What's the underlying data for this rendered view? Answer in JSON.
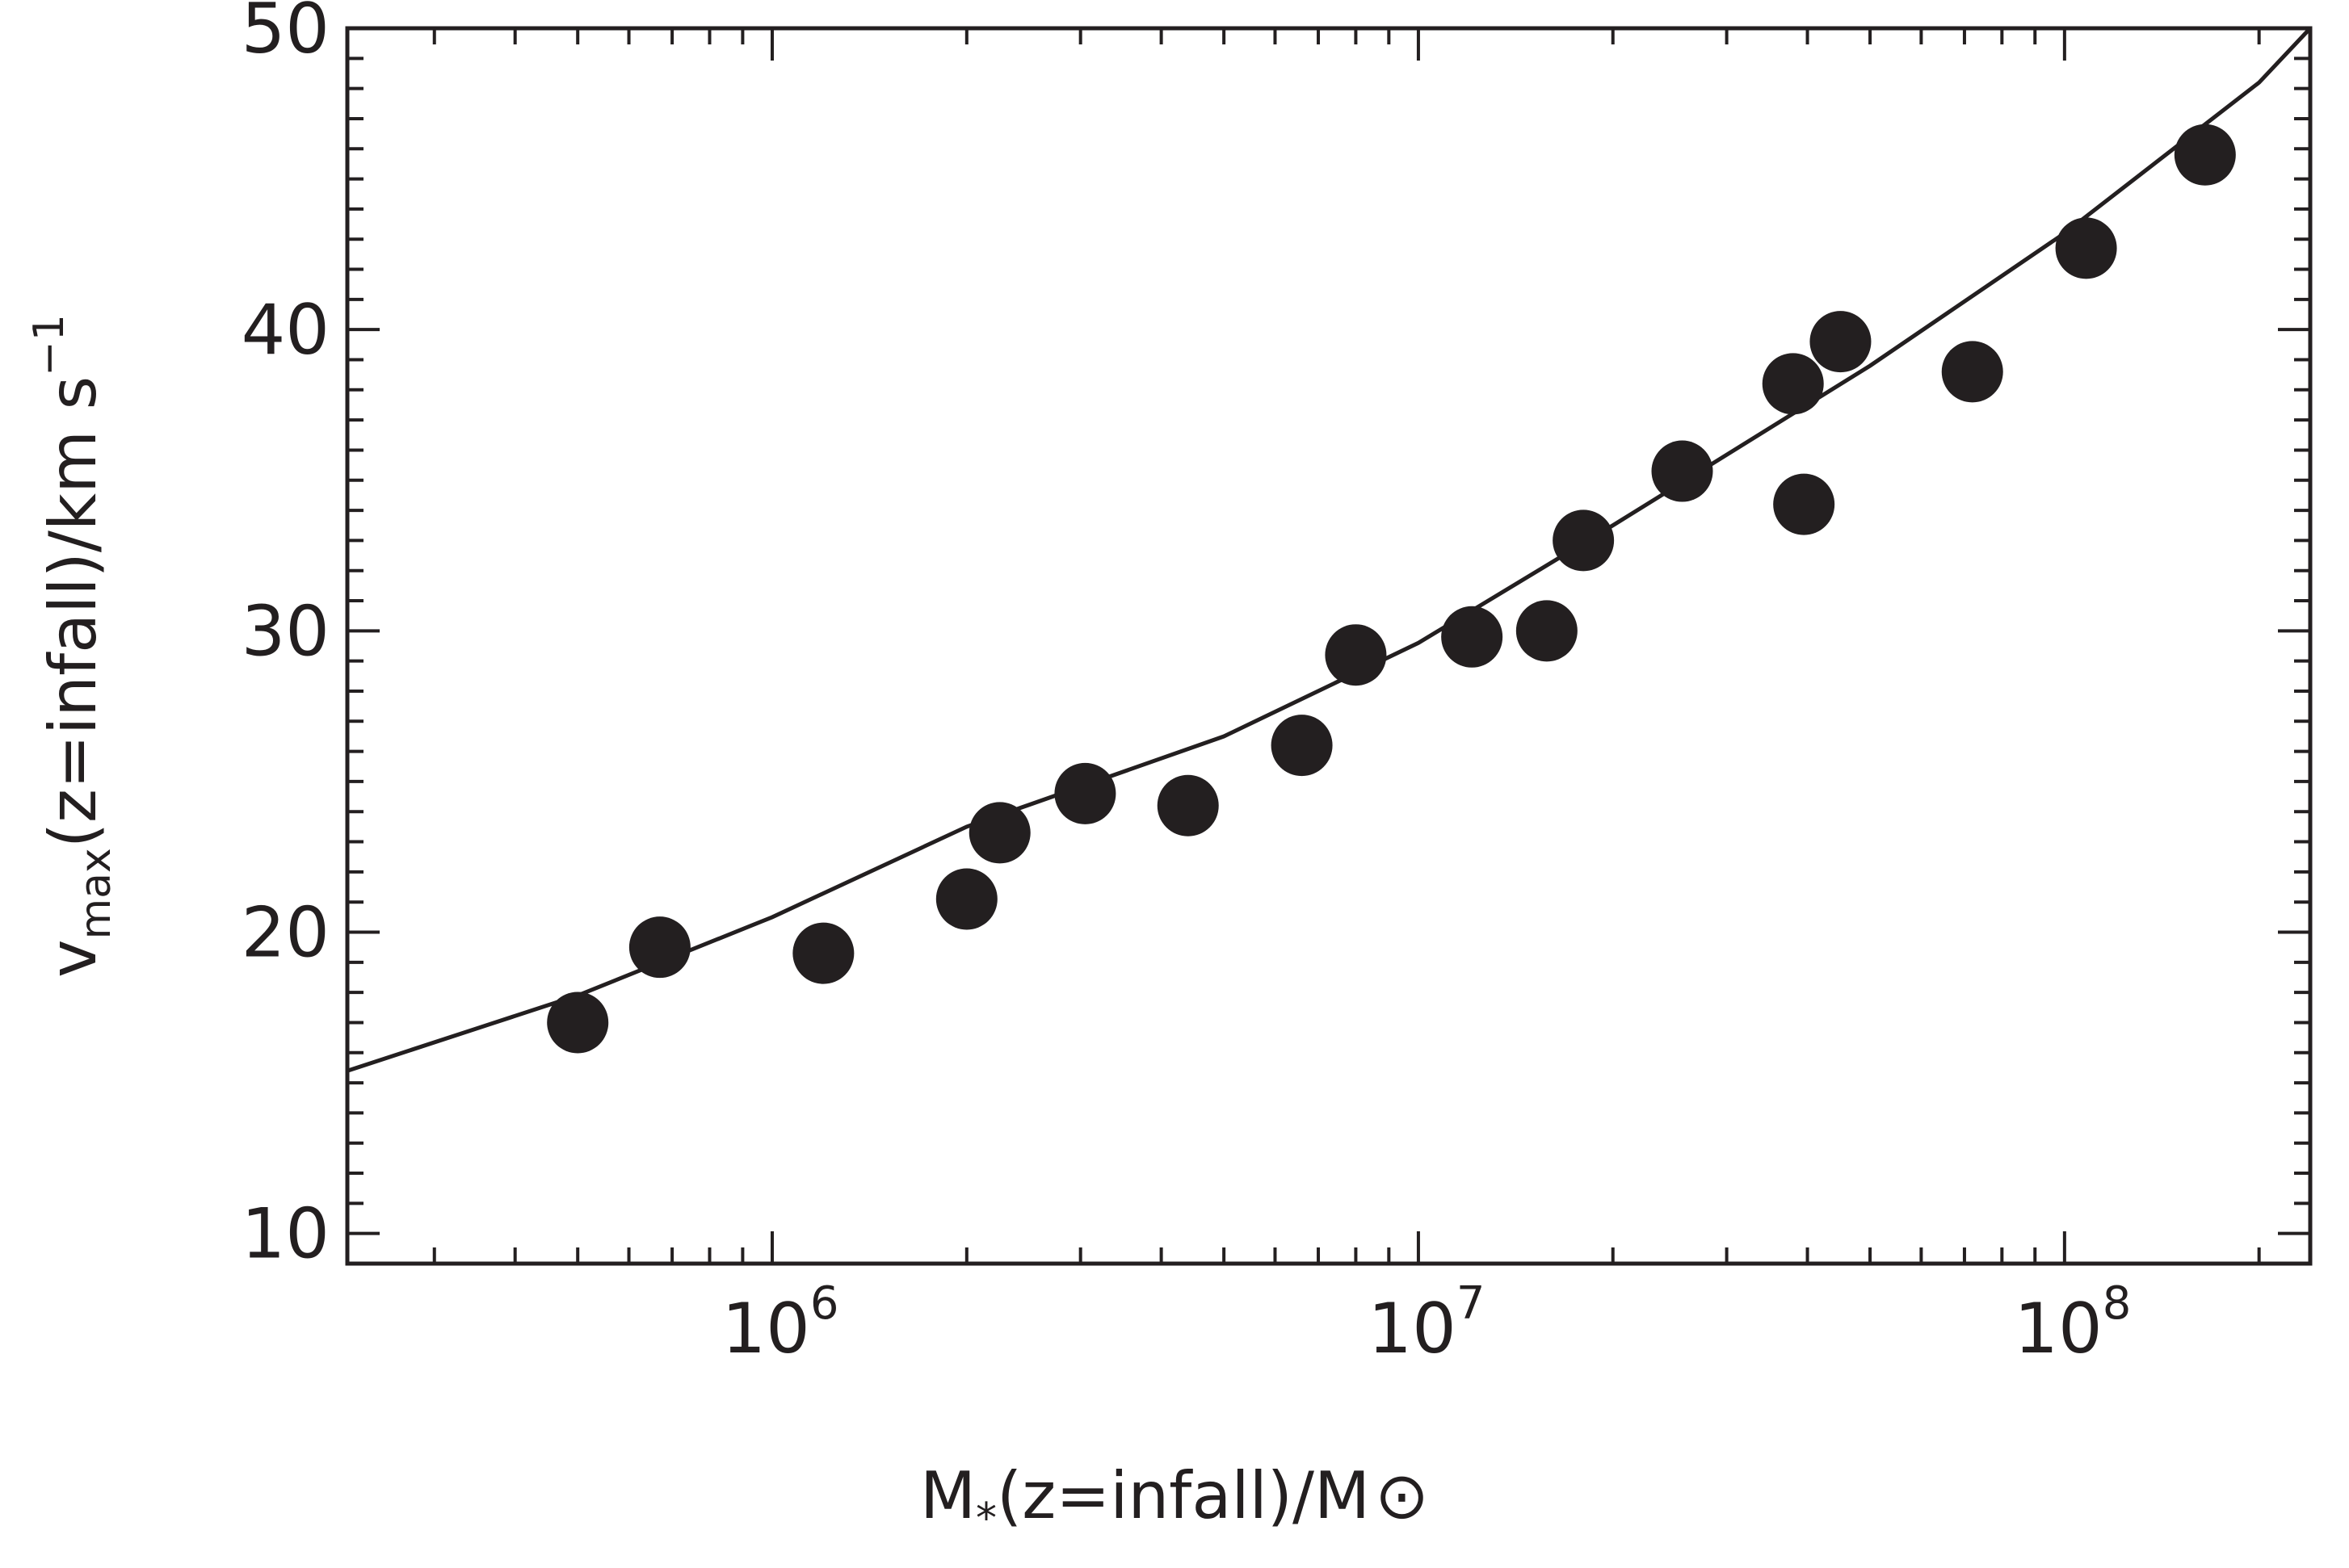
{
  "chart_data": {
    "type": "scatter",
    "x_scale": "log",
    "y_scale": "linear",
    "xlim": [
      220000,
      240000000
    ],
    "ylim": [
      9,
      50
    ],
    "colors": {
      "ink": "#231f20"
    },
    "y_ticks": [
      {
        "value": 10,
        "label": "10"
      },
      {
        "value": 20,
        "label": "20"
      },
      {
        "value": 30,
        "label": "30"
      },
      {
        "value": 40,
        "label": "40"
      },
      {
        "value": 50,
        "label": "50"
      }
    ],
    "x_ticks": [
      {
        "value": 1000000,
        "base": "10",
        "exp": "6"
      },
      {
        "value": 10000000,
        "base": "10",
        "exp": "7"
      },
      {
        "value": 100000000,
        "base": "10",
        "exp": "8"
      }
    ],
    "xlabel": {
      "main": "M",
      "sub": "*",
      "rest": "(z=infall)/M",
      "symbol": "⊙"
    },
    "ylabel": {
      "main": "v",
      "sub": "max",
      "rest": "(z=infall)/km s",
      "sup": "−1"
    },
    "points": [
      {
        "x": 500000,
        "y": 17.0
      },
      {
        "x": 670000,
        "y": 19.5
      },
      {
        "x": 1200000,
        "y": 19.3
      },
      {
        "x": 2000000,
        "y": 21.1
      },
      {
        "x": 2250000,
        "y": 23.3
      },
      {
        "x": 3050000,
        "y": 24.6
      },
      {
        "x": 4400000,
        "y": 24.2
      },
      {
        "x": 6600000,
        "y": 26.2
      },
      {
        "x": 8000000,
        "y": 29.2
      },
      {
        "x": 12100000,
        "y": 29.8
      },
      {
        "x": 15800000,
        "y": 30.0
      },
      {
        "x": 18000000,
        "y": 33.0
      },
      {
        "x": 25600000,
        "y": 35.3
      },
      {
        "x": 38000000,
        "y": 38.2
      },
      {
        "x": 39500000,
        "y": 34.2
      },
      {
        "x": 45000000,
        "y": 39.6
      },
      {
        "x": 72000000,
        "y": 38.6
      },
      {
        "x": 108000000,
        "y": 42.7
      },
      {
        "x": 165000000,
        "y": 45.8
      }
    ],
    "fit_curve": {
      "x": [
        220000,
        500000,
        1000000,
        2000000,
        5000000,
        10000000,
        20000000,
        50000000,
        100000000,
        200000000,
        240000000
      ],
      "y": [
        15.4,
        17.9,
        20.5,
        23.5,
        26.5,
        29.6,
        33.5,
        38.8,
        43.2,
        48.2,
        50.0
      ]
    }
  }
}
